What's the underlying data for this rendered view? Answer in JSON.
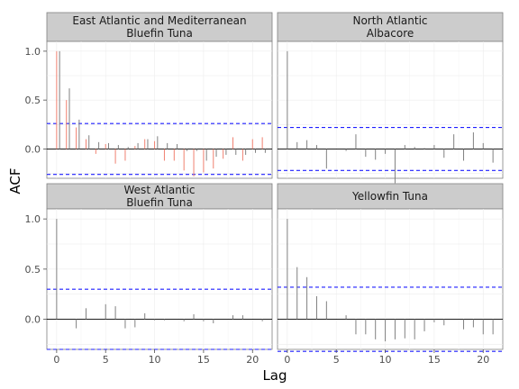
{
  "chart_data": {
    "type": "acf-facet",
    "xlabel": "Lag",
    "ylabel": "ACF",
    "xticks": [
      0,
      5,
      10,
      15,
      20
    ],
    "yticks": [
      0.0,
      0.5,
      1.0
    ],
    "xlim": [
      -1,
      22
    ],
    "ylim": [
      -0.3,
      1.1
    ],
    "colors": {
      "ci_line": "#1f1fff",
      "panel_bg": "#ffffff",
      "strip_bg": "#cccccc",
      "zero_line": "#000000"
    },
    "panels": [
      {
        "title_line1": "East Atlantic and Mediterranean",
        "title_line2": "Bluefin Tuna",
        "ci": 0.26,
        "series": [
          {
            "color": "#f08070",
            "lags": [
              0,
              1,
              2,
              3,
              4,
              5,
              6,
              7,
              8,
              9,
              10,
              11,
              12,
              13,
              14,
              15,
              16,
              17,
              18,
              19,
              20,
              21
            ],
            "values": [
              1.0,
              0.5,
              0.22,
              0.1,
              -0.05,
              0.05,
              -0.15,
              -0.12,
              0.03,
              0.1,
              0.08,
              -0.12,
              -0.12,
              -0.22,
              -0.28,
              -0.24,
              -0.2,
              -0.1,
              0.12,
              -0.12,
              0.1,
              0.12
            ]
          },
          {
            "color": "#808080",
            "lags": [
              0.3,
              1.3,
              2.3,
              3.3,
              4.3,
              5.3,
              6.3,
              7.3,
              8.3,
              9.3,
              10.3,
              11.3,
              12.3,
              13.3,
              14.3,
              15.3,
              16.3,
              17.3,
              18.3,
              19.3,
              20.3,
              21.3
            ],
            "values": [
              1.0,
              0.62,
              0.3,
              0.14,
              0.07,
              0.06,
              0.04,
              0.02,
              0.06,
              0.1,
              0.13,
              0.06,
              0.05,
              -0.02,
              -0.02,
              -0.12,
              -0.08,
              -0.06,
              -0.06,
              -0.06,
              -0.04,
              -0.04
            ]
          }
        ]
      },
      {
        "title_line1": "North Atlantic",
        "title_line2": "Albacore",
        "ci": 0.22,
        "series": [
          {
            "color": "#808080",
            "lags": [
              0,
              1,
              2,
              3,
              4,
              5,
              6,
              7,
              8,
              9,
              10,
              11,
              12,
              13,
              14,
              15,
              16,
              17,
              18,
              19,
              20,
              21
            ],
            "values": [
              1.0,
              0.07,
              0.09,
              0.04,
              -0.2,
              0.0,
              -0.02,
              0.15,
              -0.08,
              -0.11,
              -0.05,
              -0.35,
              0.04,
              0.02,
              0.01,
              0.04,
              -0.09,
              0.15,
              -0.12,
              0.17,
              0.06,
              -0.14
            ]
          }
        ]
      },
      {
        "title_line1": "West Atlantic",
        "title_line2": "Bluefin Tuna",
        "ci": 0.3,
        "series": [
          {
            "color": "#808080",
            "lags": [
              0,
              1,
              2,
              3,
              4,
              5,
              6,
              7,
              8,
              9,
              10,
              11,
              12,
              13,
              14,
              15,
              16,
              17,
              18,
              19,
              20,
              21
            ],
            "values": [
              1.0,
              0.0,
              -0.09,
              0.11,
              0.0,
              0.15,
              0.13,
              -0.09,
              -0.08,
              0.06,
              -0.01,
              -0.01,
              0.0,
              -0.02,
              0.05,
              -0.02,
              -0.04,
              0.0,
              0.04,
              0.04,
              0.0,
              -0.02
            ]
          }
        ]
      },
      {
        "title_line1": "Yellowfin Tuna",
        "title_line2": "",
        "ci": 0.32,
        "series": [
          {
            "color": "#808080",
            "lags": [
              0,
              1,
              2,
              3,
              4,
              5,
              6,
              7,
              8,
              9,
              10,
              11,
              12,
              13,
              14,
              15,
              16,
              17,
              18,
              19,
              20,
              21
            ],
            "values": [
              1.0,
              0.52,
              0.42,
              0.23,
              0.18,
              0.0,
              0.04,
              -0.15,
              -0.15,
              -0.2,
              -0.22,
              -0.2,
              -0.19,
              -0.2,
              -0.12,
              -0.03,
              -0.06,
              0.0,
              -0.1,
              -0.08,
              -0.15,
              -0.15
            ]
          }
        ]
      }
    ]
  }
}
